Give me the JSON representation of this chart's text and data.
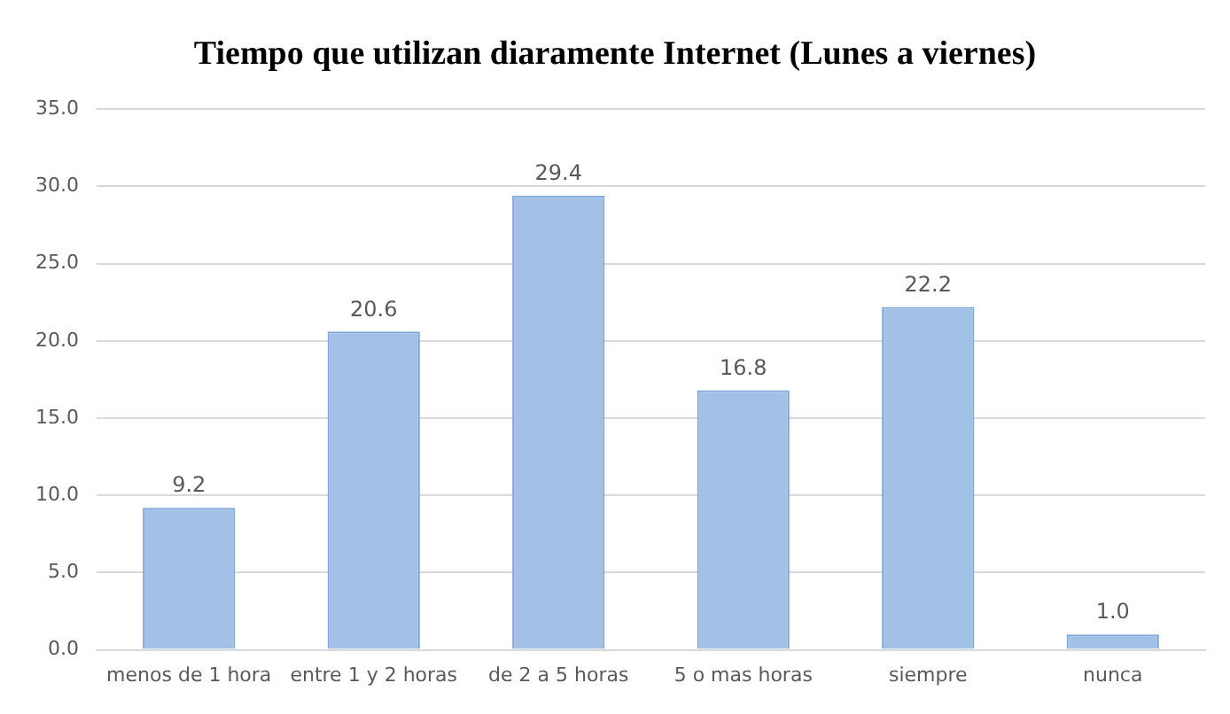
{
  "chart_data": {
    "type": "bar",
    "title": "Tiempo que utilizan diaramente Internet (Lunes a viernes)",
    "categories": [
      "menos de 1 hora",
      "entre 1 y 2 horas",
      "de 2 a 5 horas",
      "5 o mas horas",
      "siempre",
      "nunca"
    ],
    "values": [
      9.2,
      20.6,
      29.4,
      16.8,
      22.2,
      1.0
    ],
    "value_labels": [
      "9.2",
      "20.6",
      "29.4",
      "16.8",
      "22.2",
      "1.0"
    ],
    "color": "#a3c1e6",
    "ylim": [
      0,
      35
    ],
    "yticks": [
      {
        "value": 0,
        "label": "0.0"
      },
      {
        "value": 5,
        "label": "5.0"
      },
      {
        "value": 10,
        "label": "10.0"
      },
      {
        "value": 15,
        "label": "15.0"
      },
      {
        "value": 20,
        "label": "20.0"
      },
      {
        "value": 25,
        "label": "25.0"
      },
      {
        "value": 30,
        "label": "30.0"
      },
      {
        "value": 35,
        "label": "35.0"
      }
    ],
    "grid": "y",
    "legend": false
  }
}
